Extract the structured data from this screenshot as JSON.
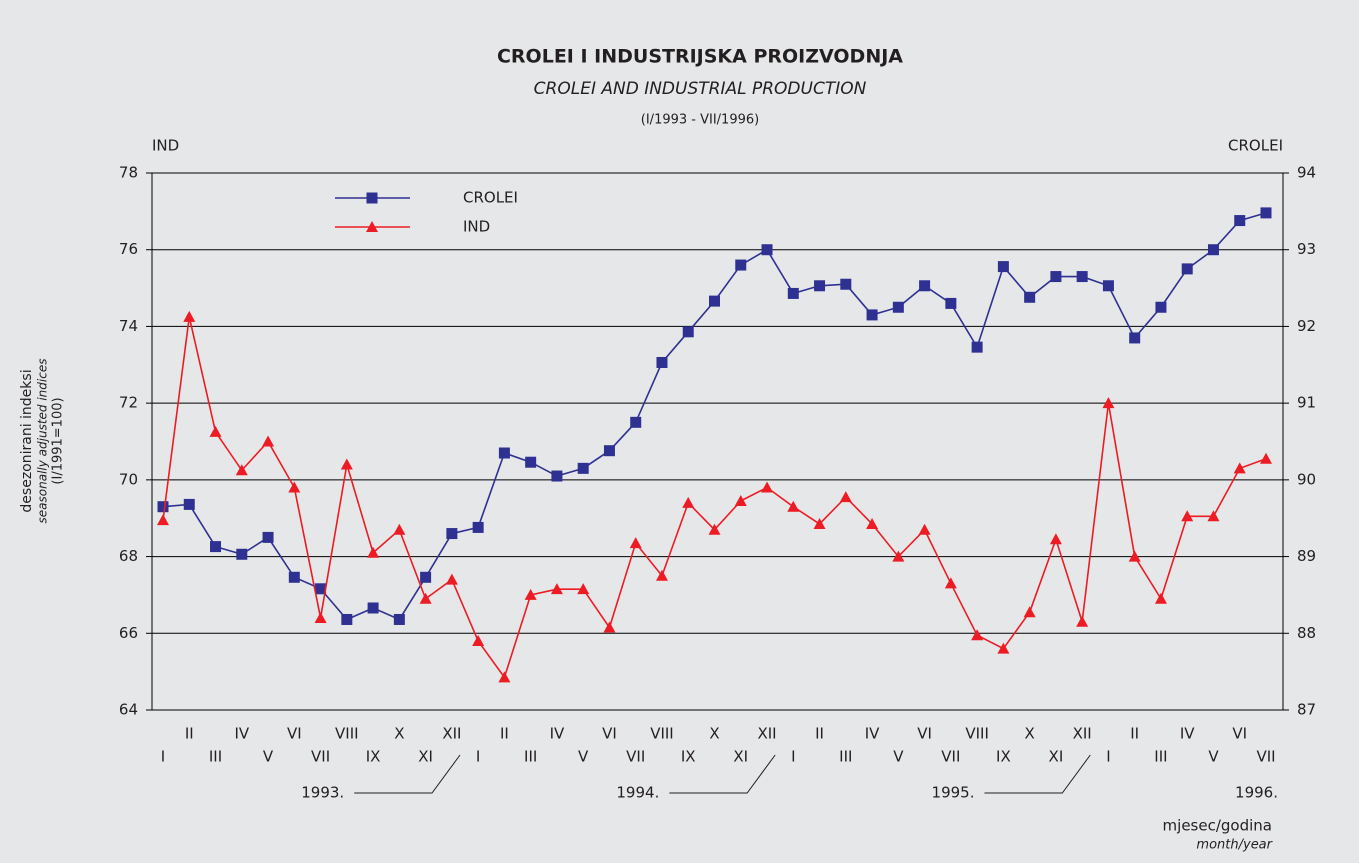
{
  "chart_data": {
    "type": "line",
    "title": "CROLEI I INDUSTRIJSKA PROIZVODNJA",
    "subtitle": "CROLEI AND INDUSTRIAL PRODUCTION",
    "period": "(I/1993 - VII/1996)",
    "y_axis_title": "IND",
    "y2_axis_title": "CROLEI",
    "ylabel": [
      "desezonirani indeksi",
      "seasonally adjusted indices",
      "(I/1991=100)"
    ],
    "xlabel": [
      "mjesec/godina",
      "month/year"
    ],
    "categories": [
      "I",
      "II",
      "III",
      "IV",
      "V",
      "VI",
      "VII",
      "VIII",
      "IX",
      "X",
      "XI",
      "XII",
      "I",
      "II",
      "III",
      "IV",
      "V",
      "VI",
      "VII",
      "VIII",
      "IX",
      "X",
      "XI",
      "XII",
      "I",
      "II",
      "III",
      "IV",
      "V",
      "VI",
      "VII",
      "VIII",
      "IX",
      "X",
      "XI",
      "XII",
      "I",
      "II",
      "III",
      "IV",
      "V",
      "VI",
      "VII"
    ],
    "years": [
      "1993.",
      "1994.",
      "1995.",
      "1996."
    ],
    "ylim": [
      64,
      78
    ],
    "yticks": [
      64,
      66,
      68,
      70,
      72,
      74,
      76,
      78
    ],
    "y2lim": [
      87,
      94
    ],
    "y2ticks": [
      87,
      88,
      89,
      90,
      91,
      92,
      93,
      94
    ],
    "grid": true,
    "legend": "upper left",
    "series": [
      {
        "name": "CROLEI",
        "color": "#2e3192",
        "marker": "square",
        "axis": "y2",
        "values": [
          89.65,
          89.68,
          89.13,
          89.03,
          89.25,
          88.73,
          88.58,
          88.18,
          88.33,
          88.18,
          88.73,
          89.3,
          89.38,
          90.35,
          90.23,
          90.05,
          90.15,
          90.38,
          90.75,
          91.53,
          91.93,
          92.33,
          92.8,
          93.0,
          92.43,
          92.53,
          92.55,
          92.15,
          92.25,
          92.53,
          92.3,
          91.73,
          92.78,
          92.38,
          92.65,
          92.65,
          92.53,
          91.85,
          92.25,
          92.75,
          93.0,
          93.38,
          93.48
        ]
      },
      {
        "name": "IND",
        "color": "#ed1c24",
        "marker": "triangle",
        "values": [
          68.95,
          74.25,
          71.25,
          70.25,
          71.0,
          69.8,
          66.4,
          70.4,
          68.1,
          68.7,
          66.9,
          67.4,
          65.8,
          64.85,
          67.0,
          67.15,
          67.15,
          66.15,
          68.35,
          67.5,
          69.4,
          68.7,
          69.45,
          69.8,
          69.3,
          68.85,
          69.55,
          68.85,
          68.0,
          68.7,
          67.3,
          65.95,
          65.6,
          66.55,
          68.45,
          66.3,
          72.0,
          68.0,
          66.9,
          69.05,
          69.05,
          70.3,
          70.55
        ]
      }
    ]
  }
}
